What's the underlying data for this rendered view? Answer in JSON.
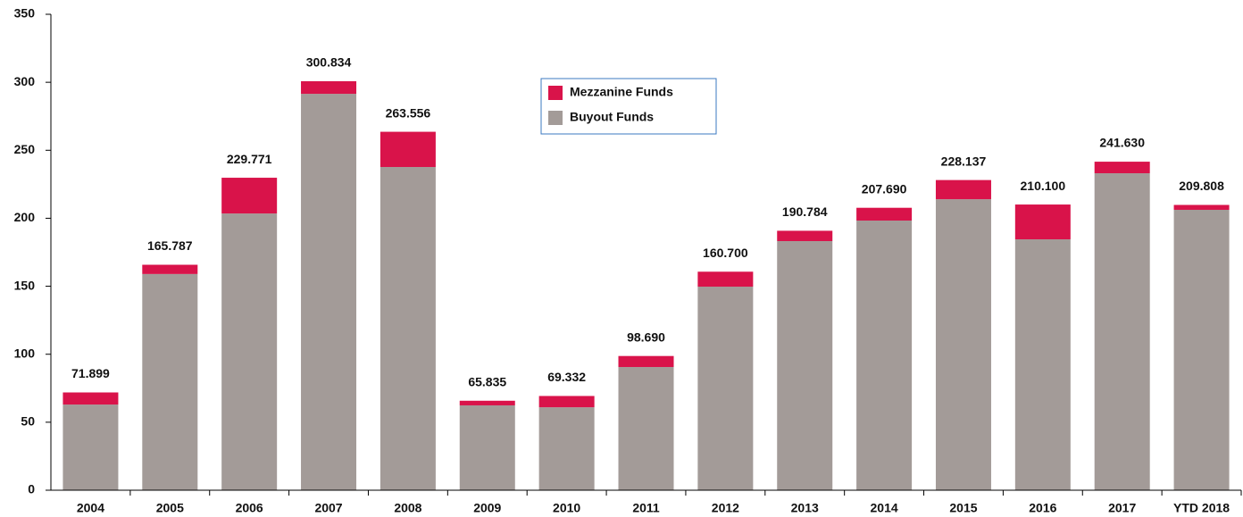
{
  "chart_data": {
    "type": "stacked_bar",
    "categories": [
      "2004",
      "2005",
      "2006",
      "2007",
      "2008",
      "2009",
      "2010",
      "2011",
      "2012",
      "2013",
      "2014",
      "2015",
      "2016",
      "2017",
      "YTD 2018"
    ],
    "series": [
      {
        "name": "Buyout Funds",
        "color": "#a39b98",
        "values": [
          63,
          159,
          203.5,
          291.5,
          237.7,
          62.4,
          61,
          90.6,
          149.7,
          183.2,
          198.3,
          214,
          184.5,
          233.1,
          206.2
        ]
      },
      {
        "name": "Mezzanine Funds",
        "color": "#d9134a",
        "values": [
          8.9,
          6.8,
          26.3,
          9.3,
          25.9,
          3.4,
          8.3,
          8.1,
          11,
          7.6,
          9.4,
          14.1,
          25.6,
          8.5,
          3.6
        ]
      }
    ],
    "totals": [
      71.899,
      165.787,
      229.771,
      300.834,
      263.556,
      65.835,
      69.332,
      98.69,
      160.7,
      190.784,
      207.69,
      228.137,
      210.1,
      241.63,
      209.808
    ],
    "total_labels": [
      "71.899",
      "165.787",
      "229.771",
      "300.834",
      "263.556",
      "65.835",
      "69.332",
      "98.690",
      "160.700",
      "190.784",
      "207.690",
      "228.137",
      "210.100",
      "241.630",
      "209.808"
    ],
    "ylim": [
      0,
      350
    ],
    "yticks": [
      0,
      50,
      100,
      150,
      200,
      250,
      300,
      350
    ],
    "grid": false,
    "legend": "top-center"
  }
}
